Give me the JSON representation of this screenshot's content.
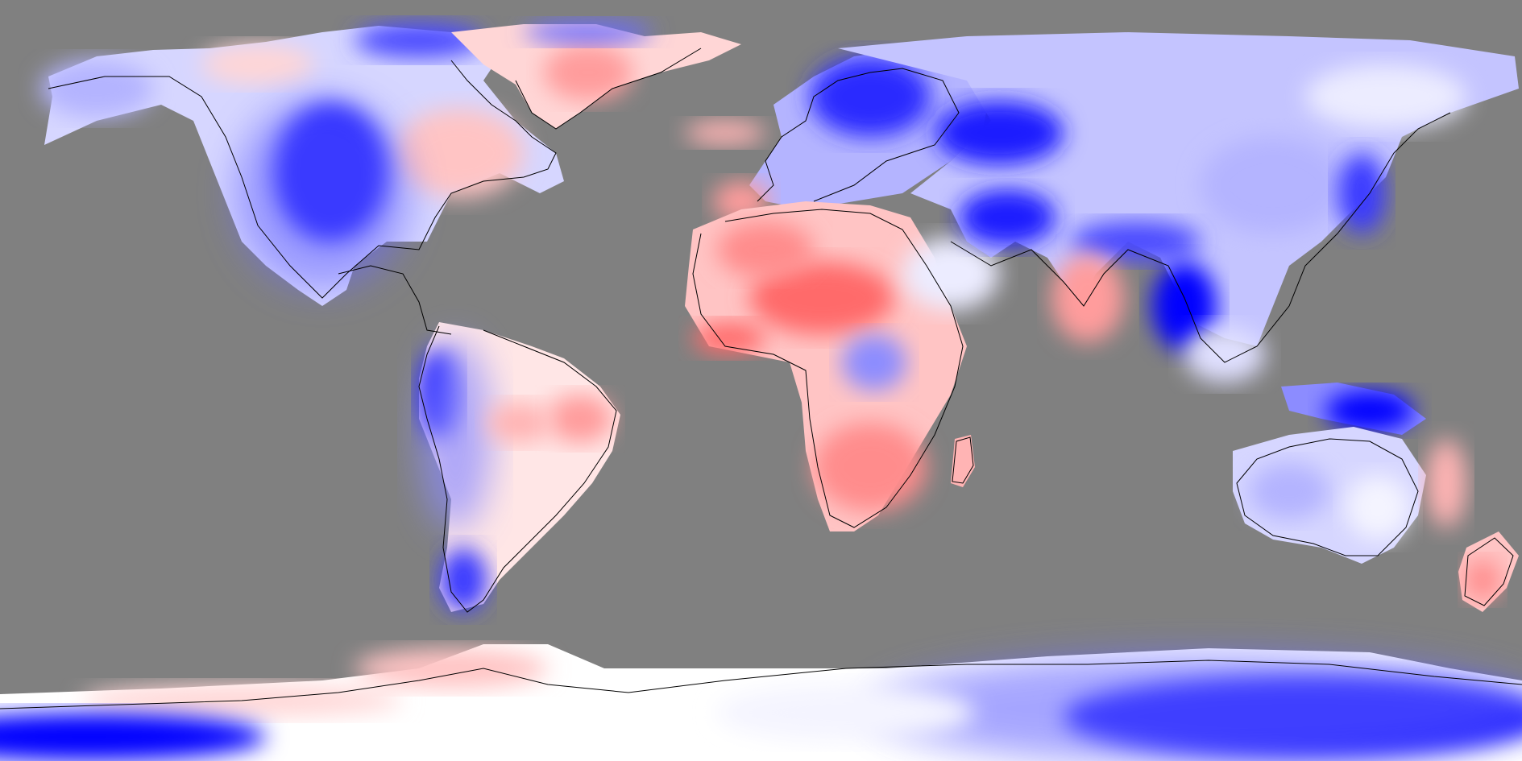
{
  "map": {
    "projection": "equirectangular",
    "ocean_color": "#808080",
    "scale_colors": {
      "strong_cool": "#0000ff",
      "cool": "#8c8cff",
      "light_cool": "#d6d6ff",
      "neutral": "#ffffff",
      "light_warm": "#ffd6d6",
      "warm": "#ff8c8c",
      "strong_warm": "#ff4a4a"
    },
    "coastline_color": "#000000",
    "regions": [
      "north-america",
      "greenland",
      "south-america",
      "europe",
      "africa",
      "asia",
      "australia",
      "new-zealand",
      "antarctica"
    ]
  }
}
